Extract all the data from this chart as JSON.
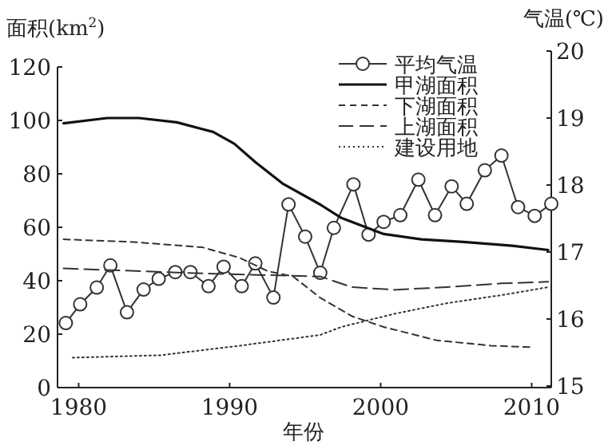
{
  "chart_data": {
    "type": "line",
    "xlabel": "年份",
    "ylabel": "面积(km$^{2}$)",
    "y2label": "气温(℃)",
    "xlim": [
      1978.6,
      2011.3
    ],
    "xticks": [
      1980,
      1990,
      2000,
      2010
    ],
    "ylim": [
      0,
      120
    ],
    "yticks": [
      0,
      20,
      40,
      60,
      80,
      100,
      120
    ],
    "y2lim": [
      15,
      20
    ],
    "y2ticks": [
      15,
      16,
      17,
      18,
      19,
      20
    ],
    "grid": false,
    "legend": "top right",
    "series": [
      {
        "name": "平均气温",
        "color": "#333333",
        "axis": "y2",
        "marker": "circle",
        "line_style": "solid",
        "x": [
          1979.15,
          1980.1,
          1981.2,
          1982.1,
          1983.2,
          1984.3,
          1985.3,
          1986.4,
          1987.4,
          1988.6,
          1989.6,
          1990.8,
          1991.7,
          1992.9,
          1993.9,
          1995.0,
          1996.0,
          1996.9,
          1998.2,
          1999.2,
          2000.2,
          2001.3,
          2002.5,
          2003.6,
          2004.7,
          2005.7,
          2006.9,
          2008.0,
          2009.1,
          2010.2,
          2011.3
        ],
        "values": [
          15.94,
          16.22,
          16.47,
          16.8,
          16.1,
          16.44,
          16.6,
          16.7,
          16.7,
          16.49,
          16.78,
          16.49,
          16.83,
          16.32,
          17.71,
          17.23,
          16.69,
          17.36,
          18.01,
          17.26,
          17.45,
          17.55,
          18.08,
          17.55,
          17.98,
          17.72,
          18.22,
          18.44,
          17.67,
          17.54,
          17.72
        ]
      },
      {
        "name": "甲湖面积",
        "color": "#111111",
        "marker": "none",
        "line_style": "solid",
        "x": [
          1979.0,
          1981.9,
          1984.0,
          1986.5,
          1988.9,
          1990.3,
          1991.7,
          1993.5,
          1996.0,
          1997.4,
          2000.2,
          2002.7,
          2005.5,
          2008.7,
          2011.1
        ],
        "values": [
          98.9,
          100.9,
          100.9,
          99.3,
          95.7,
          91.3,
          84.4,
          76.4,
          68.5,
          63.5,
          57.5,
          55.5,
          54.5,
          53.1,
          51.5
        ]
      },
      {
        "name": "下湖面积",
        "color": "#333333",
        "marker": "none",
        "line_style": "dashed",
        "x": [
          1979.0,
          1983.6,
          1988.2,
          1990.7,
          1992.5,
          1994.2,
          1996.0,
          1998.1,
          2000.2,
          2003.7,
          2007.3,
          2010.1
        ],
        "values": [
          55.5,
          54.5,
          52.5,
          48.5,
          43.6,
          41.6,
          33.6,
          26.7,
          22.7,
          17.7,
          15.7,
          15.1
        ]
      },
      {
        "name": "上湖面积",
        "color": "#333333",
        "marker": "none",
        "line_style": "longdash",
        "x": [
          1979.0,
          1988.9,
          1996.0,
          1998.1,
          2000.9,
          2004.4,
          2008.0,
          2011.1
        ],
        "values": [
          44.6,
          42.6,
          41.6,
          37.6,
          36.6,
          37.6,
          39.0,
          39.6
        ]
      },
      {
        "name": "建设用地",
        "color": "#333333",
        "marker": "none",
        "line_style": "dotted",
        "x": [
          1979.6,
          1985.4,
          1990.7,
          1996.0,
          1997.4,
          2000.9,
          2004.4,
          2008.0,
          2011.1
        ],
        "values": [
          11.2,
          12.1,
          15.7,
          19.7,
          22.7,
          27.6,
          31.6,
          34.6,
          37.6
        ]
      }
    ]
  }
}
